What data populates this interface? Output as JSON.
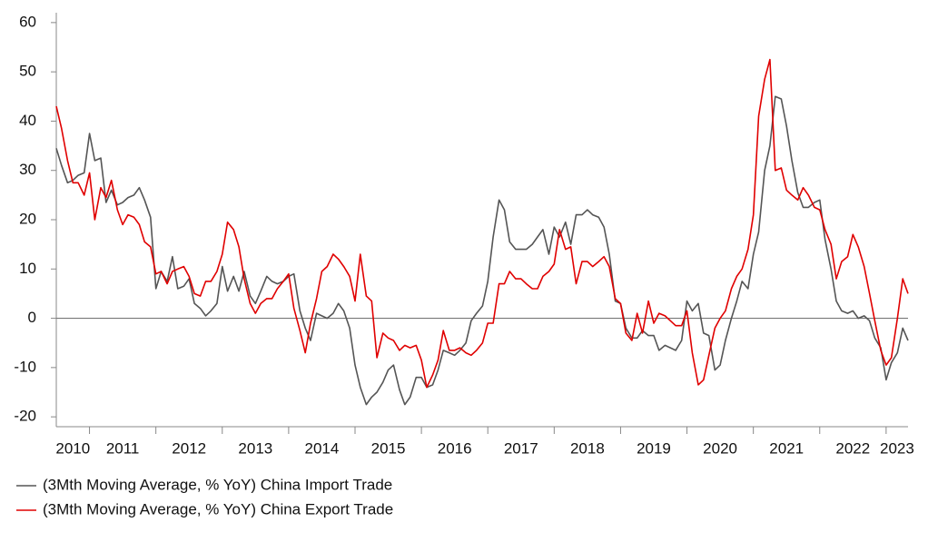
{
  "chart_data": {
    "type": "line",
    "x": [
      2010.5,
      2010.58,
      2010.67,
      2010.75,
      2010.83,
      2010.92,
      2011,
      2011.08,
      2011.17,
      2011.25,
      2011.33,
      2011.42,
      2011.5,
      2011.58,
      2011.67,
      2011.75,
      2011.83,
      2011.92,
      2012,
      2012.08,
      2012.17,
      2012.25,
      2012.33,
      2012.42,
      2012.5,
      2012.58,
      2012.67,
      2012.75,
      2012.83,
      2012.92,
      2013,
      2013.08,
      2013.17,
      2013.25,
      2013.33,
      2013.42,
      2013.5,
      2013.58,
      2013.67,
      2013.75,
      2013.83,
      2013.92,
      2014,
      2014.08,
      2014.17,
      2014.25,
      2014.33,
      2014.42,
      2014.5,
      2014.58,
      2014.67,
      2014.75,
      2014.83,
      2014.92,
      2015,
      2015.08,
      2015.17,
      2015.25,
      2015.33,
      2015.42,
      2015.5,
      2015.58,
      2015.67,
      2015.75,
      2015.83,
      2015.92,
      2016,
      2016.08,
      2016.17,
      2016.25,
      2016.33,
      2016.42,
      2016.5,
      2016.58,
      2016.67,
      2016.75,
      2016.83,
      2016.92,
      2017,
      2017.08,
      2017.17,
      2017.25,
      2017.33,
      2017.42,
      2017.5,
      2017.58,
      2017.67,
      2017.75,
      2017.83,
      2017.92,
      2018,
      2018.08,
      2018.17,
      2018.25,
      2018.33,
      2018.42,
      2018.5,
      2018.58,
      2018.67,
      2018.75,
      2018.83,
      2018.92,
      2019,
      2019.08,
      2019.17,
      2019.25,
      2019.33,
      2019.42,
      2019.5,
      2019.58,
      2019.67,
      2019.75,
      2019.83,
      2019.92,
      2020,
      2020.08,
      2020.17,
      2020.25,
      2020.33,
      2020.42,
      2020.5,
      2020.58,
      2020.67,
      2020.75,
      2020.83,
      2020.92,
      2021,
      2021.08,
      2021.17,
      2021.25,
      2021.33,
      2021.42,
      2021.5,
      2021.58,
      2021.67,
      2021.75,
      2021.83,
      2021.92,
      2022,
      2022.08,
      2022.17,
      2022.25,
      2022.33,
      2022.42,
      2022.5,
      2022.58,
      2022.67,
      2022.75,
      2022.83,
      2022.92,
      2023,
      2023.08,
      2023.17,
      2023.25,
      2023.33
    ],
    "series": [
      {
        "name": "(3Mth Moving Average, % YoY) China Import Trade",
        "color": "#555555",
        "values": [
          34.5,
          31,
          27.5,
          28,
          29,
          29.5,
          37.5,
          32,
          32.5,
          23.5,
          26,
          23,
          23.5,
          24.5,
          25,
          26.5,
          24,
          20.5,
          6,
          9.5,
          7.5,
          12.5,
          6,
          6.5,
          8,
          3,
          2,
          0.5,
          1.5,
          3,
          10.5,
          5.5,
          8.5,
          5.5,
          9.5,
          4.5,
          3,
          5.5,
          8.5,
          7.5,
          7,
          7.5,
          8.5,
          9,
          1.5,
          -2,
          -4.5,
          1,
          0.5,
          0,
          1,
          3,
          1.5,
          -2,
          -9.5,
          -14,
          -17.5,
          -16,
          -15,
          -13,
          -10.5,
          -9.5,
          -14.5,
          -17.5,
          -16,
          -12,
          -12,
          -14,
          -13.5,
          -10.5,
          -6.5,
          -7,
          -7.5,
          -6.5,
          -5,
          -0.5,
          1,
          2.5,
          7.5,
          16.5,
          24,
          22,
          15.5,
          14,
          14,
          14,
          15,
          16.5,
          18,
          13,
          18.5,
          16.5,
          19.5,
          15,
          21,
          21,
          22,
          21,
          20.5,
          18.5,
          13,
          3.5,
          3,
          -2,
          -4,
          -4,
          -2.5,
          -3.5,
          -3.5,
          -6.5,
          -5.5,
          -6,
          -6.5,
          -4.5,
          3.5,
          1.5,
          3,
          -3,
          -3.5,
          -10.5,
          -9.5,
          -4.5,
          0,
          3.5,
          7.5,
          6,
          13,
          17.5,
          30,
          35,
          45,
          44.5,
          39,
          32,
          25.5,
          22.5,
          22.5,
          23.5,
          24,
          16,
          10,
          3.5,
          1.5,
          1,
          1.5,
          0,
          0.5,
          -0.5,
          -4,
          -6,
          -12.5,
          -9,
          -7,
          -2,
          -4.5
        ]
      },
      {
        "name": "(3Mth Moving Average, % YoY) China Export Trade",
        "color": "#e00000",
        "values": [
          43,
          38.5,
          32,
          27.5,
          27.5,
          25,
          29.5,
          20,
          26.5,
          24.5,
          28,
          22,
          19,
          21,
          20.5,
          19,
          15.5,
          14.5,
          9,
          9.5,
          7,
          9.5,
          10,
          10.5,
          8.5,
          5,
          4.5,
          7.5,
          7.5,
          9.5,
          13,
          19.5,
          18,
          14.5,
          8,
          3,
          1,
          3,
          4,
          4,
          6,
          7.5,
          9,
          2,
          -2.5,
          -7,
          -1,
          4,
          9.5,
          10.5,
          13,
          12,
          10.5,
          8.5,
          3.5,
          13,
          4.5,
          3.5,
          -8,
          -3,
          -4,
          -4.5,
          -6.5,
          -5.5,
          -6,
          -5.5,
          -8.5,
          -14,
          -11.5,
          -8.5,
          -2.5,
          -6.5,
          -6.5,
          -6,
          -7,
          -7.5,
          -6.5,
          -5,
          -1,
          -1,
          7,
          7,
          9.5,
          8,
          8,
          7,
          6,
          6,
          8.5,
          9.5,
          11,
          18,
          14,
          14.5,
          7,
          11.5,
          11.5,
          10.5,
          11.5,
          12.5,
          10.5,
          4,
          3,
          -3,
          -4.5,
          1,
          -3,
          3.5,
          -1,
          1,
          0.5,
          -0.5,
          -1.5,
          -1.5,
          1.5,
          -7,
          -13.5,
          -12.5,
          -7.5,
          -2,
          0,
          1.5,
          6,
          8.5,
          10,
          14,
          21,
          41,
          48.5,
          52.5,
          30,
          30.5,
          26,
          25,
          24,
          26.5,
          25,
          22.5,
          22,
          18,
          15,
          8,
          11.5,
          12.5,
          17,
          14.5,
          10.5,
          5,
          -0.5,
          -6.5,
          -9.5,
          -8,
          0,
          8,
          5
        ]
      }
    ],
    "xlim": [
      2010.5,
      2023.33
    ],
    "xticks": [
      2010,
      2011,
      2012,
      2013,
      2014,
      2015,
      2016,
      2017,
      2018,
      2019,
      2020,
      2021,
      2022,
      2023
    ],
    "ylim": [
      -22,
      62
    ],
    "yticks": [
      -20,
      -10,
      0,
      10,
      20,
      30,
      40,
      50,
      60
    ]
  }
}
